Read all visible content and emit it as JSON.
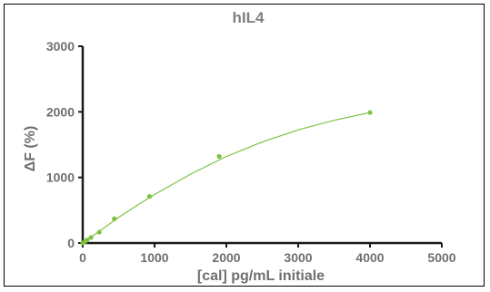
{
  "chart_data": {
    "type": "scatter",
    "title": "hIL4",
    "xlabel": "[cal] pg/mL initiale",
    "ylabel": "ΔF (%)",
    "xlim": [
      0,
      5000
    ],
    "ylim": [
      0,
      3000
    ],
    "xticks": [
      0,
      1000,
      2000,
      3000,
      4000,
      5000
    ],
    "yticks": [
      0,
      1000,
      2000,
      3000
    ],
    "xtick_labels": [
      "0",
      "1000",
      "2000",
      "3000",
      "4000",
      "5000"
    ],
    "ytick_labels": [
      "0",
      "1000",
      "2000",
      "3000"
    ],
    "grid": false,
    "legend": "none",
    "series": [
      {
        "points": [
          {
            "x": 0,
            "y": 0
          },
          {
            "x": 30,
            "y": 20
          },
          {
            "x": 60,
            "y": 45
          },
          {
            "x": 115,
            "y": 85
          },
          {
            "x": 230,
            "y": 165
          },
          {
            "x": 440,
            "y": 370
          },
          {
            "x": 930,
            "y": 710
          },
          {
            "x": 1900,
            "y": 1320
          },
          {
            "x": 4000,
            "y": 1990
          }
        ],
        "fit_curve": [
          {
            "x": 0,
            "y": 0
          },
          {
            "x": 250,
            "y": 195
          },
          {
            "x": 500,
            "y": 390
          },
          {
            "x": 750,
            "y": 570
          },
          {
            "x": 1000,
            "y": 740
          },
          {
            "x": 1500,
            "y": 1050
          },
          {
            "x": 2000,
            "y": 1320
          },
          {
            "x": 2500,
            "y": 1540
          },
          {
            "x": 3000,
            "y": 1725
          },
          {
            "x": 3500,
            "y": 1870
          },
          {
            "x": 4000,
            "y": 1990
          }
        ]
      }
    ],
    "colors": {
      "series": "#7cc242",
      "axis": "#1a1a1a",
      "text": "#6f6f6f",
      "title": "#7f7f7f"
    }
  }
}
